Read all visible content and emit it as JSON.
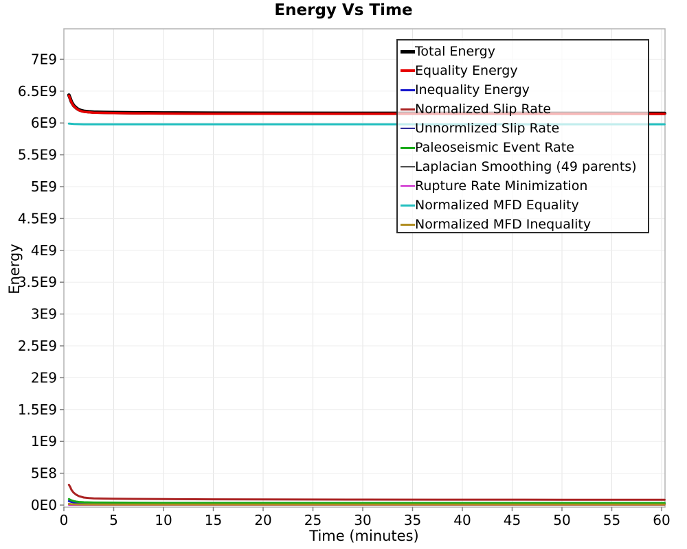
{
  "window": {
    "title": "Energy Vs Time"
  },
  "chart_data": {
    "type": "line",
    "title": "Energy Vs Time",
    "xlabel": "Time (minutes)",
    "ylabel": "Energy",
    "xlim": [
      0,
      60.35
    ],
    "ylim": [
      -50000000,
      7480000000
    ],
    "grid": true,
    "legend_position": "top-right-inside",
    "legend_border_color": "#2b2b2b",
    "grid_color_vertical": "#e4e4e4",
    "grid_color_horizontal": "#ededed",
    "spine_color": "#b3b3b3",
    "tick_color": "#808080",
    "x_ticks": [
      {
        "v": 0,
        "label": "0"
      },
      {
        "v": 5,
        "label": "5"
      },
      {
        "v": 10,
        "label": "10"
      },
      {
        "v": 15,
        "label": "15"
      },
      {
        "v": 20,
        "label": "20"
      },
      {
        "v": 25,
        "label": "25"
      },
      {
        "v": 30,
        "label": "30"
      },
      {
        "v": 35,
        "label": "35"
      },
      {
        "v": 40,
        "label": "40"
      },
      {
        "v": 45,
        "label": "45"
      },
      {
        "v": 50,
        "label": "50"
      },
      {
        "v": 55,
        "label": "55"
      },
      {
        "v": 60,
        "label": "60"
      }
    ],
    "y_ticks": [
      {
        "v": 0,
        "label": "0E0"
      },
      {
        "v": 500000000,
        "label": "5E8"
      },
      {
        "v": 1000000000,
        "label": "1E9"
      },
      {
        "v": 1500000000,
        "label": "1.5E9"
      },
      {
        "v": 2000000000,
        "label": "2E9"
      },
      {
        "v": 2500000000,
        "label": "2.5E9"
      },
      {
        "v": 3000000000,
        "label": "3E9"
      },
      {
        "v": 3500000000,
        "label": "3.5E9"
      },
      {
        "v": 4000000000,
        "label": "4E9"
      },
      {
        "v": 4500000000,
        "label": "4.5E9"
      },
      {
        "v": 5000000000,
        "label": "5E9"
      },
      {
        "v": 5500000000,
        "label": "5.5E9"
      },
      {
        "v": 6000000000,
        "label": "6E9"
      },
      {
        "v": 6500000000,
        "label": "6.5E9"
      },
      {
        "v": 7000000000,
        "label": "7E9"
      }
    ],
    "series": [
      {
        "id": "total-energy",
        "name": "Total Energy",
        "color": "#000000",
        "width": 5,
        "points": [
          [
            0.5,
            6437000000.0
          ],
          [
            0.65,
            6380000000.0
          ],
          [
            0.75,
            6334000000.0
          ],
          [
            0.9,
            6295000000.0
          ],
          [
            1,
            6271000000.0
          ],
          [
            1.25,
            6235000000.0
          ],
          [
            1.5,
            6208000000.0
          ],
          [
            1.75,
            6194000000.0
          ],
          [
            2,
            6184000000.0
          ],
          [
            2.5,
            6176000000.0
          ],
          [
            3,
            6170000000.0
          ],
          [
            4,
            6166000000.0
          ],
          [
            5,
            6164000000.0
          ],
          [
            7,
            6160000000.0
          ],
          [
            10,
            6157000000.0
          ],
          [
            15,
            6154000000.0
          ],
          [
            20,
            6153000000.0
          ],
          [
            30,
            6152000000.0
          ],
          [
            45,
            6152000000.0
          ],
          [
            60.3,
            6151000000.0
          ]
        ]
      },
      {
        "id": "equality-energy",
        "name": "Equality Energy",
        "color": "#e60000",
        "width": 3.5,
        "points": [
          [
            0.5,
            6429000000.0
          ],
          [
            0.65,
            6372000000.0
          ],
          [
            0.75,
            6326000000.0
          ],
          [
            0.9,
            6287000000.0
          ],
          [
            1,
            6263000000.0
          ],
          [
            1.25,
            6227000000.0
          ],
          [
            1.5,
            6200000000.0
          ],
          [
            1.75,
            6186000000.0
          ],
          [
            2,
            6176000000.0
          ],
          [
            2.5,
            6168000000.0
          ],
          [
            3,
            6162000000.0
          ],
          [
            4,
            6158000000.0
          ],
          [
            5,
            6156000000.0
          ],
          [
            7,
            6152000000.0
          ],
          [
            10,
            6149000000.0
          ],
          [
            15,
            6146000000.0
          ],
          [
            20,
            6145000000.0
          ],
          [
            30,
            6144000000.0
          ],
          [
            45,
            6144000000.0
          ],
          [
            60.3,
            6143000000.0
          ]
        ]
      },
      {
        "id": "inequality-energy",
        "name": "Inequality Energy",
        "color": "#1515cc",
        "width": 3,
        "points": [
          [
            0.5,
            63000000.0
          ],
          [
            0.75,
            49000000.0
          ],
          [
            1,
            40500000.0
          ],
          [
            1.5,
            33000000.0
          ],
          [
            2,
            29000000.0
          ],
          [
            3,
            27000000.0
          ],
          [
            5,
            25500000.0
          ],
          [
            10,
            24000000.0
          ],
          [
            20,
            23000000.0
          ],
          [
            40,
            22000000.0
          ],
          [
            60.3,
            22000000.0
          ]
        ]
      },
      {
        "id": "normalized-slip-rate",
        "name": "Normalized Slip Rate",
        "color": "#aa2222",
        "width": 3,
        "points": [
          [
            0.5,
            319000000.0
          ],
          [
            0.65,
            280000000.0
          ],
          [
            0.75,
            241000000.0
          ],
          [
            0.9,
            210000000.0
          ],
          [
            1,
            192000000.0
          ],
          [
            1.25,
            162000000.0
          ],
          [
            1.5,
            141000000.0
          ],
          [
            2,
            119000000.0
          ],
          [
            2.5,
            111000000.0
          ],
          [
            3,
            106000000.0
          ],
          [
            4,
            102000000.0
          ],
          [
            5,
            100000000.0
          ],
          [
            7,
            97000000.0
          ],
          [
            10,
            94000000.0
          ],
          [
            15,
            91000000.0
          ],
          [
            20,
            88000000.0
          ],
          [
            30,
            86000000.0
          ],
          [
            40,
            85000000.0
          ],
          [
            50,
            84000000.0
          ],
          [
            60.3,
            84000000.0
          ]
        ]
      },
      {
        "id": "unnormalized-slip-rate",
        "name": "Unnormlized Slip Rate",
        "color": "#2a2a99",
        "width": 2,
        "points": [
          [
            0.5,
            14000000.0
          ],
          [
            0.75,
            10500000.0
          ],
          [
            1,
            8300000.0
          ],
          [
            1.5,
            5700000.0
          ],
          [
            2,
            4800000.0
          ],
          [
            3,
            4200000.0
          ],
          [
            5,
            4000000.0
          ],
          [
            10,
            4000000.0
          ],
          [
            60.3,
            4000000.0
          ]
        ]
      },
      {
        "id": "paleoseismic-event-rate",
        "name": "Paleoseismic Event Rate",
        "color": "#18aa18",
        "width": 3,
        "points": [
          [
            0.5,
            95000000.0
          ],
          [
            0.65,
            82000000.0
          ],
          [
            0.75,
            74000000.0
          ],
          [
            1,
            62000000.0
          ],
          [
            1.25,
            54000000.0
          ],
          [
            1.5,
            49000000.0
          ],
          [
            2,
            44000000.0
          ],
          [
            3,
            41000000.0
          ],
          [
            5,
            39000000.0
          ],
          [
            10,
            36000000.0
          ],
          [
            20,
            34000000.0
          ],
          [
            40,
            33000000.0
          ],
          [
            60.3,
            33000000.0
          ]
        ]
      },
      {
        "id": "laplacian-smoothing",
        "name": "Laplacian Smoothing (49 parents)",
        "color": "#4d4d4d",
        "width": 2,
        "points": [
          [
            0.5,
            11500000.0
          ],
          [
            0.75,
            9500000.0
          ],
          [
            1,
            8200000.0
          ],
          [
            2,
            7000000.0
          ],
          [
            5,
            6500000.0
          ],
          [
            10,
            6500000.0
          ],
          [
            60.3,
            6500000.0
          ]
        ]
      },
      {
        "id": "rupture-rate-minimization",
        "name": "Rupture Rate Minimization",
        "color": "#cc22cc",
        "width": 2.5,
        "points": [
          [
            0.5,
            2500000.0
          ],
          [
            1,
            2200000.0
          ],
          [
            5,
            2000000.0
          ],
          [
            60.3,
            2000000.0
          ]
        ]
      },
      {
        "id": "normalized-mfd-equality",
        "name": "Normalized MFD Equality",
        "color": "#20bfbf",
        "width": 3,
        "points": [
          [
            0.5,
            5990000000.0
          ],
          [
            1,
            5983000000.0
          ],
          [
            2,
            5980000000.0
          ],
          [
            10,
            5979000000.0
          ],
          [
            60.3,
            5979000000.0
          ]
        ]
      },
      {
        "id": "normalized-mfd-inequality",
        "name": "Normalized MFD Inequality",
        "color": "#b08d20",
        "width": 3,
        "points": [
          [
            0.5,
            17000000.0
          ],
          [
            0.75,
            13500000.0
          ],
          [
            1,
            11500000.0
          ],
          [
            2,
            9500000.0
          ],
          [
            5,
            9000000.0
          ],
          [
            10,
            9000000.0
          ],
          [
            60.3,
            9000000.0
          ]
        ]
      }
    ]
  }
}
